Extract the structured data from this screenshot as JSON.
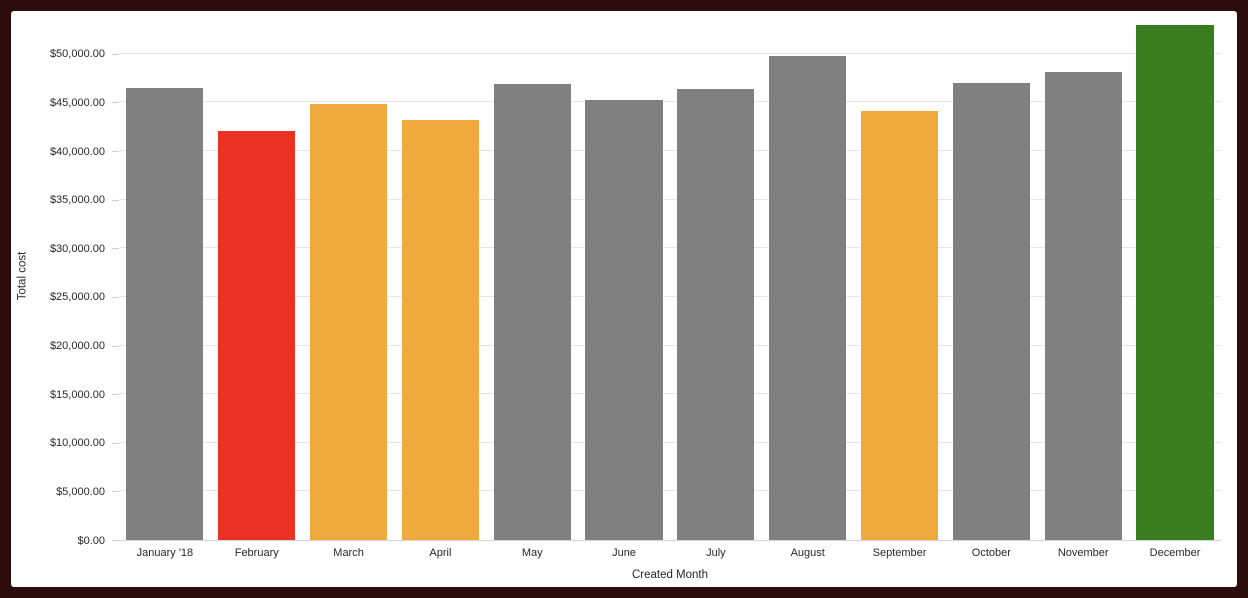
{
  "frame": {
    "background": "#2B0D0D",
    "card_background": "#FFFFFF"
  },
  "chart_data": {
    "type": "bar",
    "title": "",
    "xlabel": "Created Month",
    "ylabel": "Total cost",
    "categories": [
      "January '18",
      "February",
      "March",
      "April",
      "May",
      "June",
      "July",
      "August",
      "September",
      "October",
      "November",
      "December"
    ],
    "series": [
      {
        "name": "Total cost",
        "values": [
          46500,
          42100,
          44800,
          43200,
          46900,
          45300,
          46400,
          49800,
          44100,
          47000,
          48100,
          53000
        ]
      }
    ],
    "bar_color_names": [
      "gray",
      "red",
      "orange",
      "orange",
      "gray",
      "gray",
      "gray",
      "gray",
      "orange",
      "gray",
      "gray",
      "green"
    ],
    "palette": {
      "gray": "#808080",
      "red": "#E93223",
      "orange": "#F0A93C",
      "green": "#3A7D21"
    },
    "ylim": [
      0,
      54400
    ],
    "ytick_step": 5000,
    "ytick_labels": [
      "$0.00",
      "$5,000.00",
      "$10,000.00",
      "$15,000.00",
      "$20,000.00",
      "$25,000.00",
      "$30,000.00",
      "$35,000.00",
      "$40,000.00",
      "$45,000.00",
      "$50,000.00"
    ],
    "grid": true,
    "legend_position": "none",
    "styles": {
      "grid_color": "#E6E6E6",
      "baseline_color": "#D2D2DC",
      "tick_color": "#CFCFCF",
      "text_color": "#282828"
    }
  }
}
